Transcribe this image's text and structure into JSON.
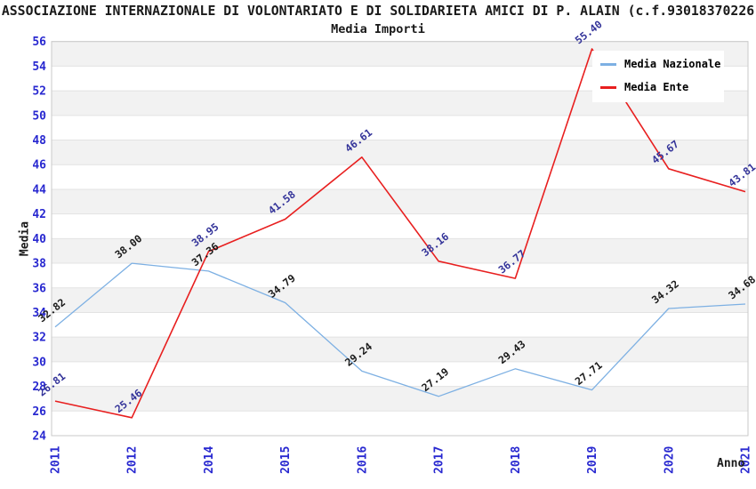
{
  "title": "ASSOCIAZIONE INTERNAZIONALE DI VOLONTARIATO E DI SOLIDARIETA AMICI DI P. ALAIN (c.f.93018370226",
  "subtitle": "Media Importi",
  "legend": {
    "items": [
      {
        "label": "Media Nazionale",
        "color": "#7db0e3"
      },
      {
        "label": "Media Ente",
        "color": "#e81f1f"
      }
    ]
  },
  "chart_data": {
    "type": "line",
    "title": "Media Importi",
    "xlabel": "Anno",
    "ylabel": "Media",
    "x": [
      2011,
      2012,
      2014,
      2015,
      2016,
      2017,
      2018,
      2019,
      2020,
      2021
    ],
    "series": [
      {
        "name": "Media Nazionale",
        "color": "#7db0e3",
        "label_color": "#1a1a1a",
        "line_width": 1.3,
        "values": [
          32.82,
          38.0,
          37.36,
          34.79,
          29.24,
          27.19,
          29.43,
          27.71,
          34.32,
          34.68
        ]
      },
      {
        "name": "Media Ente",
        "color": "#e81f1f",
        "label_color": "#333399",
        "line_width": 1.6,
        "values": [
          26.81,
          25.46,
          38.95,
          41.58,
          46.61,
          38.16,
          36.77,
          55.4,
          45.67,
          43.81
        ]
      }
    ],
    "ylim": [
      24,
      56
    ],
    "ytick_step": 2,
    "grid": true,
    "legend_position": "top-right",
    "tick_color": "#2828d0",
    "grid_color": "#e3e3e3",
    "spine_color": "#c9c9c9",
    "band_colors": [
      "#f2f2f2",
      "#ffffff"
    ]
  }
}
